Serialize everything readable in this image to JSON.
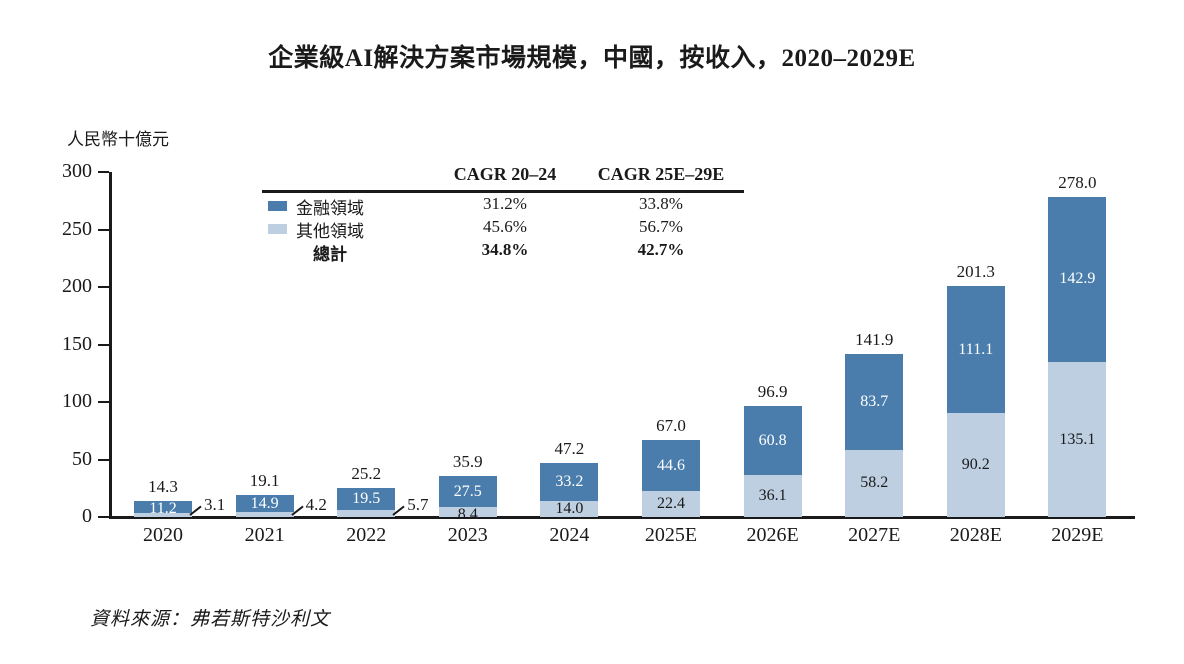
{
  "title": "企業級AI解決方案市場規模，中國，按收入，2020–2029E",
  "y_axis": {
    "unit_label": "人民幣十億元",
    "ticks": [
      0,
      50,
      100,
      150,
      200,
      250,
      300
    ]
  },
  "legend_table": {
    "col_headers": [
      "CAGR 20–24",
      "CAGR 25E–29E"
    ],
    "rows": [
      {
        "swatch": "finance",
        "label": "金融領域",
        "values": [
          "31.2%",
          "33.8%"
        ],
        "bold": false
      },
      {
        "swatch": "others",
        "label": "其他領域",
        "values": [
          "45.6%",
          "56.7%"
        ],
        "bold": false
      },
      {
        "swatch": null,
        "label": "總計",
        "values": [
          "34.8%",
          "42.7%"
        ],
        "bold": true
      }
    ]
  },
  "chart_data": {
    "type": "bar",
    "stacked": true,
    "title": "企業級AI解決方案市場規模，中國，按收入，2020–2029E",
    "ylabel": "人民幣十億元",
    "ylim": [
      0,
      300
    ],
    "grid": false,
    "legend_position": "top-left-table",
    "categories": [
      "2020",
      "2021",
      "2022",
      "2023",
      "2024",
      "2025E",
      "2026E",
      "2027E",
      "2028E",
      "2029E"
    ],
    "series": [
      {
        "name": "金融領域",
        "position": "top",
        "color": "#4a7dac",
        "values": [
          11.2,
          14.9,
          19.5,
          27.5,
          33.2,
          44.6,
          60.8,
          83.7,
          111.1,
          142.9
        ]
      },
      {
        "name": "其他領域",
        "position": "bottom",
        "color": "#becfe2",
        "values": [
          3.1,
          4.2,
          5.7,
          8.4,
          14.0,
          22.4,
          36.1,
          58.2,
          90.2,
          135.1
        ]
      }
    ],
    "totals": [
      14.3,
      19.1,
      25.2,
      35.9,
      47.2,
      67.0,
      96.9,
      141.9,
      201.3,
      278.0
    ],
    "outside_light_label_count": 3
  },
  "source": "資料來源：弗若斯特沙利文",
  "colors": {
    "finance": "#4a7dac",
    "others": "#becfe2",
    "axis": "#1a1a1a",
    "dark_segment_text": "#ffffff",
    "light_segment_text": "#1a1a1a"
  }
}
